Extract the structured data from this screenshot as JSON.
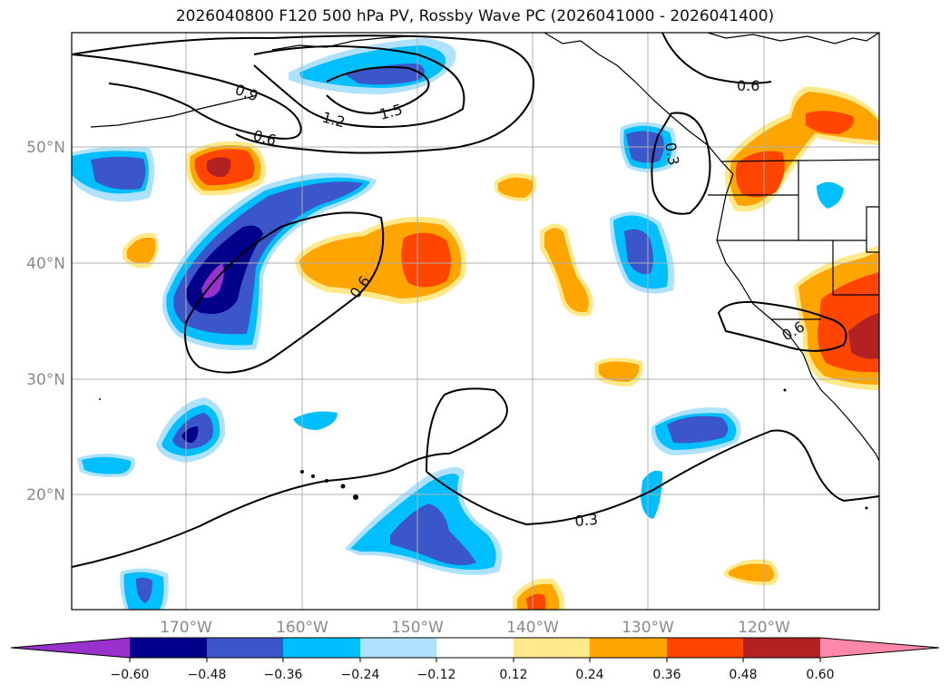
{
  "title": "2026040800 F120 500 hPa PV, Rossby Wave PC (2026041000 - 2026041400)",
  "map": {
    "lon_ticks": [
      "170°W",
      "160°W",
      "150°W",
      "140°W",
      "130°W",
      "120°W"
    ],
    "lat_ticks": [
      "50°N",
      "40°N",
      "30°N",
      "20°N"
    ],
    "contour_labels": [
      "0.9",
      "1.2",
      "1.5",
      "0.6",
      "0.6",
      "0.6",
      "0.6",
      "0.3"
    ],
    "contour_color": "#000000"
  },
  "colorbar": {
    "ticks": [
      "−0.60",
      "−0.48",
      "−0.36",
      "−0.24",
      "−0.12",
      "0.12",
      "0.24",
      "0.36",
      "0.48",
      "0.60"
    ],
    "colors": [
      "#9932cc",
      "#00008b",
      "#3a56c8",
      "#00bfff",
      "#aee2ff",
      "#ffffff",
      "#ffe98a",
      "#ffa500",
      "#ff4500",
      "#b22222",
      "#ff88aa"
    ]
  }
}
